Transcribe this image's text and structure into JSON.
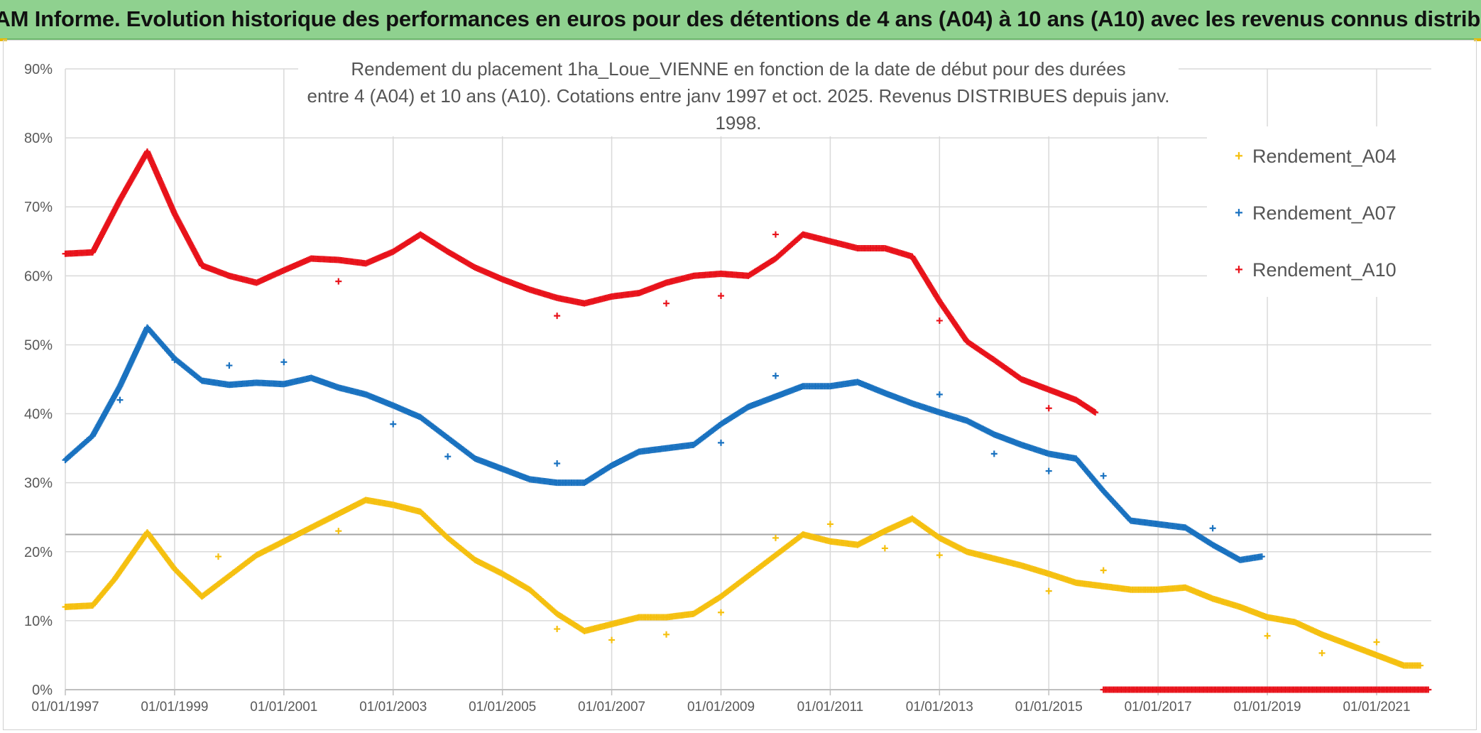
{
  "banner": {
    "title": "ADAM Informe. Evolution historique des performances en euros pour des détentions de 4 ans (A04) à 10 ans (A10) avec les revenus connus distribués"
  },
  "colors": {
    "banner_bg": "#8fd18f",
    "A04": "#f5c010",
    "A07": "#1a72c0",
    "A10": "#e8131b",
    "grid": "#d9d9d9",
    "ref_line": "#a6a6a6"
  },
  "chart_data": {
    "type": "scatter",
    "title_line1": "Rendement du placement 1ha_Loue_VIENNE en fonction de la date de début pour des durées",
    "title_line2": "entre 4 (A04) et 10 ans (A10). Cotations entre janv 1997 et oct. 2025. Revenus DISTRIBUES depuis janv. 1998.",
    "xlabel": "",
    "ylabel": "",
    "xlim": [
      1997.0,
      2022.2
    ],
    "ylim": [
      0,
      90
    ],
    "y_ticks": [
      "0%",
      "10%",
      "20%",
      "30%",
      "40%",
      "50%",
      "60%",
      "70%",
      "80%",
      "90%"
    ],
    "x_ticks": [
      {
        "year": 1997,
        "label": "01/01/1997"
      },
      {
        "year": 1999,
        "label": "01/01/1999"
      },
      {
        "year": 2001,
        "label": "01/01/2001"
      },
      {
        "year": 2003,
        "label": "01/01/2003"
      },
      {
        "year": 2005,
        "label": "01/01/2005"
      },
      {
        "year": 2007,
        "label": "01/01/2007"
      },
      {
        "year": 2009,
        "label": "01/01/2009"
      },
      {
        "year": 2011,
        "label": "01/01/2011"
      },
      {
        "year": 2013,
        "label": "01/01/2013"
      },
      {
        "year": 2015,
        "label": "01/01/2015"
      },
      {
        "year": 2017,
        "label": "01/01/2017"
      },
      {
        "year": 2019,
        "label": "01/01/2019"
      },
      {
        "year": 2021,
        "label": "01/01/2021"
      }
    ],
    "reference_line_y": 22.5,
    "series": [
      {
        "name": "Rendement_A04",
        "x": [
          1997.0,
          1997.5,
          1997.9,
          1998.5,
          1999.0,
          1999.5,
          2000.0,
          2000.5,
          2001.0,
          2001.5,
          2002.0,
          2002.5,
          2003.0,
          2003.5,
          2004.0,
          2004.5,
          2005.0,
          2005.5,
          2006.0,
          2006.5,
          2007.0,
          2007.5,
          2008.0,
          2008.5,
          2009.0,
          2009.5,
          2010.0,
          2010.5,
          2011.0,
          2011.5,
          2012.0,
          2012.5,
          2013.0,
          2013.5,
          2014.0,
          2014.5,
          2015.0,
          2015.5,
          2016.0,
          2016.5,
          2017.0,
          2017.5,
          2018.0,
          2018.5,
          2019.0,
          2019.5,
          2020.0,
          2020.5,
          2021.0,
          2021.5,
          2021.8
        ],
        "y": [
          12.0,
          12.2,
          16.0,
          22.8,
          17.5,
          13.5,
          16.5,
          19.5,
          21.5,
          23.5,
          25.5,
          27.5,
          26.8,
          25.8,
          22.0,
          18.8,
          16.8,
          14.5,
          11.0,
          8.5,
          9.5,
          10.5,
          10.5,
          11.0,
          13.5,
          16.5,
          19.5,
          22.5,
          21.5,
          21.0,
          23.0,
          24.8,
          22.0,
          20.0,
          19.0,
          18.0,
          16.8,
          15.5,
          15.0,
          14.5,
          14.5,
          14.8,
          13.2,
          12.0,
          10.5,
          9.8,
          8.0,
          6.5,
          5.0,
          3.5,
          3.5
        ],
        "outliers": [
          [
            1999.8,
            19.3
          ],
          [
            2002.0,
            23.0
          ],
          [
            2006.0,
            8.8
          ],
          [
            2007.0,
            7.2
          ],
          [
            2008.0,
            8.0
          ],
          [
            2009.0,
            11.2
          ],
          [
            2010.0,
            22.0
          ],
          [
            2011.0,
            24.0
          ],
          [
            2012.0,
            20.5
          ],
          [
            2013.0,
            19.5
          ],
          [
            2015.0,
            14.3
          ],
          [
            2016.0,
            17.3
          ],
          [
            2019.0,
            7.8
          ],
          [
            2020.0,
            5.3
          ],
          [
            2021.0,
            6.9
          ]
        ]
      },
      {
        "name": "Rendement_A07",
        "x": [
          1997.0,
          1997.5,
          1998.0,
          1998.5,
          1999.0,
          1999.5,
          2000.0,
          2000.5,
          2001.0,
          2001.5,
          2002.0,
          2002.5,
          2003.0,
          2003.5,
          2004.0,
          2004.5,
          2005.0,
          2005.5,
          2006.0,
          2006.5,
          2007.0,
          2007.5,
          2008.0,
          2008.5,
          2009.0,
          2009.5,
          2010.0,
          2010.5,
          2011.0,
          2011.5,
          2012.0,
          2012.5,
          2013.0,
          2013.5,
          2014.0,
          2014.5,
          2015.0,
          2015.5,
          2016.0,
          2016.5,
          2017.0,
          2017.5,
          2018.0,
          2018.5,
          2018.9
        ],
        "y": [
          33.3,
          36.8,
          44.0,
          52.5,
          48.0,
          44.8,
          44.2,
          44.5,
          44.3,
          45.2,
          43.8,
          42.8,
          41.2,
          39.5,
          36.5,
          33.5,
          32.0,
          30.5,
          30.0,
          30.0,
          32.5,
          34.5,
          35.0,
          35.5,
          38.5,
          41.0,
          42.5,
          44.0,
          44.0,
          44.6,
          43.0,
          41.5,
          40.2,
          39.0,
          37.0,
          35.5,
          34.2,
          33.5,
          28.8,
          24.5,
          24.0,
          23.5,
          21.0,
          18.8,
          19.3
        ],
        "outliers": [
          [
            1998.0,
            42.0
          ],
          [
            1999.0,
            47.8
          ],
          [
            2000.0,
            47.0
          ],
          [
            2001.0,
            47.5
          ],
          [
            2003.0,
            38.5
          ],
          [
            2004.0,
            33.8
          ],
          [
            2006.0,
            32.8
          ],
          [
            2009.0,
            35.8
          ],
          [
            2010.0,
            45.5
          ],
          [
            2013.0,
            42.8
          ],
          [
            2014.0,
            34.2
          ],
          [
            2015.0,
            31.7
          ],
          [
            2016.0,
            31.0
          ],
          [
            2018.0,
            23.4
          ]
        ]
      },
      {
        "name": "Rendement_A10",
        "x": [
          1997.0,
          1997.5,
          1998.0,
          1998.5,
          1999.0,
          1999.5,
          2000.0,
          2000.5,
          2001.0,
          2001.5,
          2002.0,
          2002.5,
          2003.0,
          2003.5,
          2004.0,
          2004.5,
          2005.0,
          2005.5,
          2006.0,
          2006.5,
          2007.0,
          2007.5,
          2008.0,
          2008.5,
          2009.0,
          2009.5,
          2010.0,
          2010.5,
          2011.0,
          2011.5,
          2012.0,
          2012.5,
          2013.0,
          2013.5,
          2014.0,
          2014.5,
          2015.0,
          2015.5,
          2015.85
        ],
        "y": [
          63.2,
          63.4,
          71.0,
          78.0,
          69.0,
          61.5,
          60.0,
          59.0,
          60.8,
          62.5,
          62.3,
          61.8,
          63.5,
          66.0,
          63.5,
          61.2,
          59.5,
          58.0,
          56.8,
          56.0,
          57.0,
          57.5,
          59.0,
          60.0,
          60.3,
          60.0,
          62.5,
          66.0,
          65.0,
          64.0,
          64.0,
          62.8,
          56.3,
          50.5,
          47.8,
          45.0,
          43.5,
          42.0,
          40.2
        ],
        "outliers": [
          [
            2002.0,
            59.2
          ],
          [
            2006.0,
            54.2
          ],
          [
            2008.0,
            56.0
          ],
          [
            2009.0,
            57.1
          ],
          [
            2010.0,
            66.0
          ],
          [
            2013.0,
            53.5
          ],
          [
            2015.0,
            40.8
          ]
        ],
        "zero_run": [
          2016.0,
          2021.95
        ]
      }
    ],
    "legend": {
      "position": "right",
      "entries": [
        "Rendement_A04",
        "Rendement_A07",
        "Rendement_A10"
      ]
    }
  }
}
